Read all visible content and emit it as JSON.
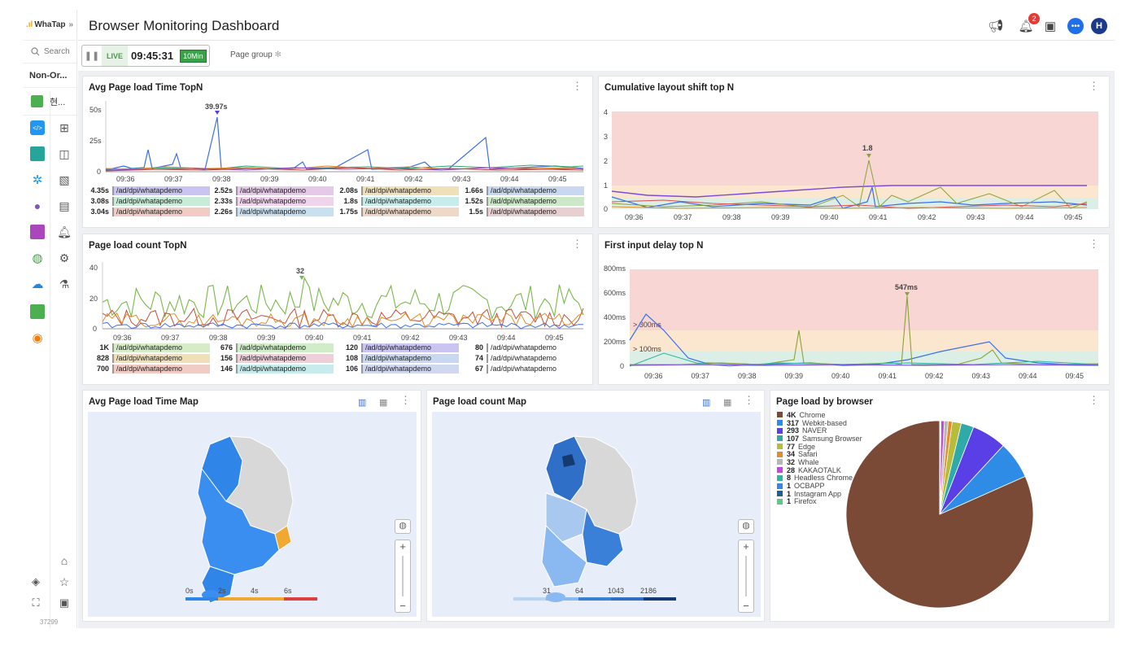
{
  "app": {
    "logo": "WhaTap",
    "collapse": "»",
    "search": "Search",
    "project": "Non-Or...",
    "current": "현...",
    "version": "37299"
  },
  "header": {
    "title": "Browser Monitoring Dashboard",
    "notification_count": "2",
    "avatar": "H"
  },
  "toolbar": {
    "live": "LIVE",
    "time": "09:45:31",
    "duration": "10Min",
    "page_group": "Page group"
  },
  "colors": {
    "accent": "#3b82f6",
    "live_green": "#3aa04a",
    "badge_red": "#e53935",
    "brown": "#7a4a35"
  },
  "x_ticks": [
    "09:36",
    "09:37",
    "09:38",
    "09:39",
    "09:40",
    "09:41",
    "09:42",
    "09:43",
    "09:44",
    "09:45"
  ],
  "panels": {
    "avg_load": {
      "title": "Avg Page load Time TopN",
      "y_ticks": [
        "50s",
        "25s",
        "0"
      ],
      "peak": "39.97s",
      "legend": [
        [
          {
            "v": "4.35s",
            "p": "/ad/dpi/whatapdemo"
          },
          {
            "v": "2.52s",
            "p": "/ad/dpi/whatapdemo"
          },
          {
            "v": "2.08s",
            "p": "/ad/dpi/whatapdemo"
          },
          {
            "v": "1.66s",
            "p": "/ad/dpi/whatapdemo"
          }
        ],
        [
          {
            "v": "3.08s",
            "p": "/ad/dpi/whatapdemo"
          },
          {
            "v": "2.33s",
            "p": "/ad/dpi/whatapdemo"
          },
          {
            "v": "1.8s",
            "p": "/ad/dpi/whatapdemo"
          },
          {
            "v": "1.52s",
            "p": "/ad/dpi/whatapdemo"
          }
        ],
        [
          {
            "v": "3.04s",
            "p": "/ad/dpi/whatapdemo"
          },
          {
            "v": "2.26s",
            "p": "/ad/dpi/whatapdemo"
          },
          {
            "v": "1.75s",
            "p": "/ad/dpi/whatapdemo"
          },
          {
            "v": "1.5s",
            "p": "/ad/dpi/whatapdemo"
          }
        ]
      ]
    },
    "cls": {
      "title": "Cumulative layout shift top N",
      "y_ticks": [
        "4",
        "3",
        "2",
        "1",
        "0"
      ],
      "peak": "1.8"
    },
    "load_count": {
      "title": "Page load count TopN",
      "y_ticks": [
        "40",
        "20",
        "0"
      ],
      "peak": "32",
      "legend": [
        [
          {
            "v": "1K",
            "p": "/ad/dpi/whatapdemo"
          },
          {
            "v": "676",
            "p": "/ad/dpi/whatapdemo"
          },
          {
            "v": "120",
            "p": "/ad/dpi/whatapdemo"
          },
          {
            "v": "80",
            "p": "/ad/dpi/whatapdemo"
          }
        ],
        [
          {
            "v": "828",
            "p": "/ad/dpi/whatapdemo"
          },
          {
            "v": "156",
            "p": "/ad/dpi/whatapdemo"
          },
          {
            "v": "108",
            "p": "/ad/dpi/whatapdemo"
          },
          {
            "v": "74",
            "p": "/ad/dpi/whatapdemo"
          }
        ],
        [
          {
            "v": "700",
            "p": "/ad/dpi/whatapdemo"
          },
          {
            "v": "146",
            "p": "/ad/dpi/whatapdemo"
          },
          {
            "v": "106",
            "p": "/ad/dpi/whatapdemo"
          },
          {
            "v": "67",
            "p": "/ad/dpi/whatapdemo"
          }
        ]
      ]
    },
    "fid": {
      "title": "First input delay top N",
      "y_ticks": [
        "800ms",
        "600ms",
        "400ms",
        "200ms",
        "0"
      ],
      "peak": "547ms",
      "band1": "> 300ms",
      "band2": "> 100ms"
    },
    "avg_map": {
      "title": "Avg Page load Time Map",
      "scale": [
        "0s",
        "2s",
        "4s",
        "6s"
      ]
    },
    "count_map": {
      "title": "Page load count Map",
      "scale": [
        "31",
        "64",
        "1043",
        "2186"
      ]
    },
    "browser": {
      "title": "Page load by browser",
      "items": [
        {
          "count": "4K",
          "name": "Chrome",
          "color": "#7b4a37"
        },
        {
          "count": "317",
          "name": "Webkit-based",
          "color": "#2f8ce6"
        },
        {
          "count": "293",
          "name": "NAVER",
          "color": "#5a3ee6"
        },
        {
          "count": "107",
          "name": "Samsung Browser",
          "color": "#30a9a9"
        },
        {
          "count": "77",
          "name": "Edge",
          "color": "#b7bd3a"
        },
        {
          "count": "34",
          "name": "Safari",
          "color": "#e88a2a"
        },
        {
          "count": "32",
          "name": "Whale",
          "color": "#b7b7b7"
        },
        {
          "count": "28",
          "name": "KAKAOTALK",
          "color": "#c04ae0"
        },
        {
          "count": "8",
          "name": "Headless Chrome",
          "color": "#2fb5a0"
        },
        {
          "count": "1",
          "name": "OCBAPP",
          "color": "#3a86e8"
        },
        {
          "count": "1",
          "name": "Instagram App",
          "color": "#1f5f99"
        },
        {
          "count": "1",
          "name": "Firefox",
          "color": "#5bc98a"
        }
      ]
    }
  }
}
